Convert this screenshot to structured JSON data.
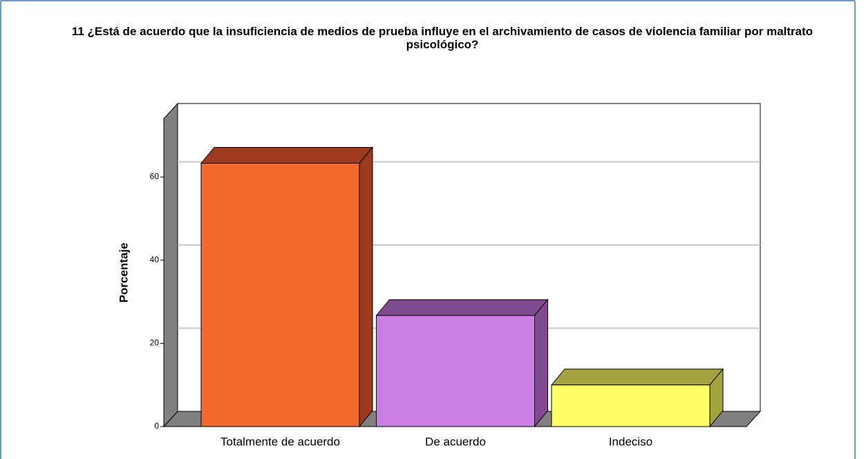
{
  "chart_data": {
    "type": "bar3d",
    "title": "11 ¿Está de acuerdo que la insuficiencia de medios de prueba influye en el archivamiento de casos de violencia familiar por maltrato psicológico?",
    "y_label": "Porcentaje",
    "categories": [
      "Totalmente de acuerdo",
      "De acuerdo",
      "Indeciso"
    ],
    "series": [
      {
        "name": "Porcentaje",
        "values": [
          63.3,
          26.7,
          10.0
        ]
      }
    ],
    "colors": [
      "#f4692d",
      "#cc80e6",
      "#ffff66"
    ],
    "side_colors": [
      "#9b3a1c",
      "#7e4c8e",
      "#a3a33f"
    ],
    "ylim": [
      0,
      74
    ],
    "yticks": [
      0,
      20,
      40,
      60
    ],
    "grid": true
  }
}
